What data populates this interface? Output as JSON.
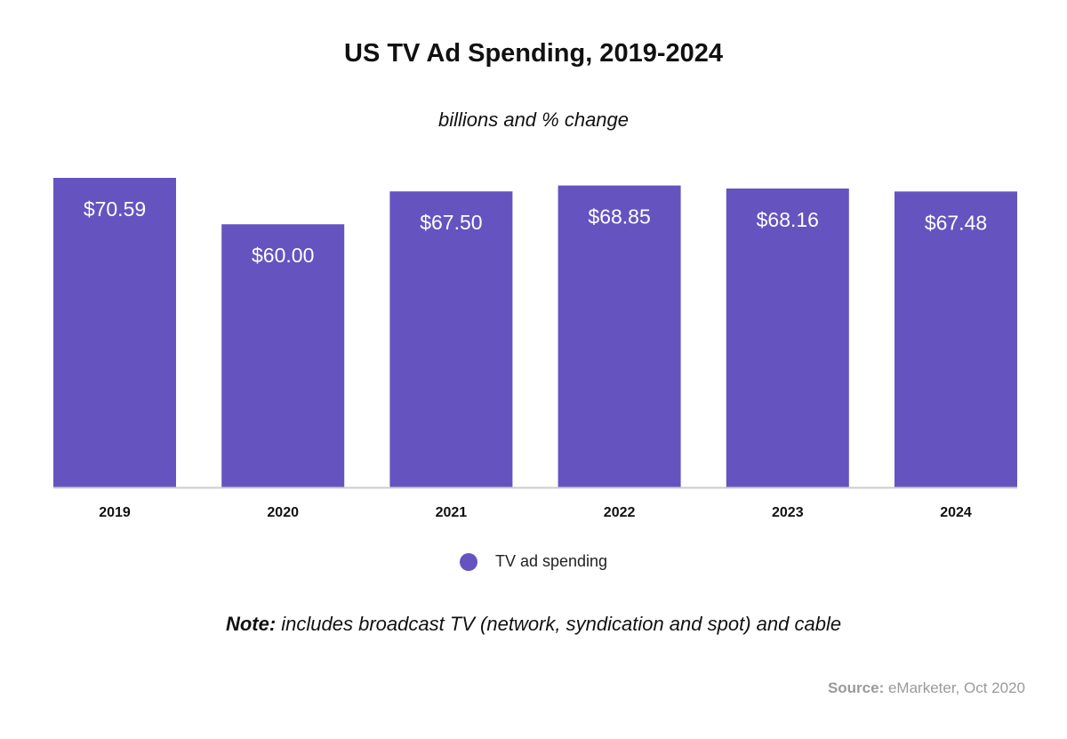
{
  "chart_data": {
    "type": "bar",
    "title": "US TV Ad Spending, 2019-2024",
    "subtitle": "billions and % change",
    "categories": [
      "2019",
      "2020",
      "2021",
      "2022",
      "2023",
      "2024"
    ],
    "series": [
      {
        "name": "TV ad spending",
        "values": [
          70.59,
          60.0,
          67.5,
          68.85,
          68.16,
          67.48
        ],
        "labels": [
          "$70.59",
          "$60.00",
          "$67.50",
          "$68.85",
          "$68.16",
          "$67.48"
        ],
        "color": "#6553c0"
      }
    ],
    "xlabel": "",
    "ylabel": "",
    "ylim": [
      0,
      70.59
    ],
    "grid": false,
    "legend_position": "bottom",
    "note_label": "Note:",
    "note_text": " includes broadcast TV (network, syndication and spot) and cable",
    "source_label": "Source:",
    "source_text": " eMarketer, Oct 2020"
  },
  "colors": {
    "bar": "#6553c0",
    "baseline": "#cccccc",
    "bar_label": "#ffffff"
  }
}
